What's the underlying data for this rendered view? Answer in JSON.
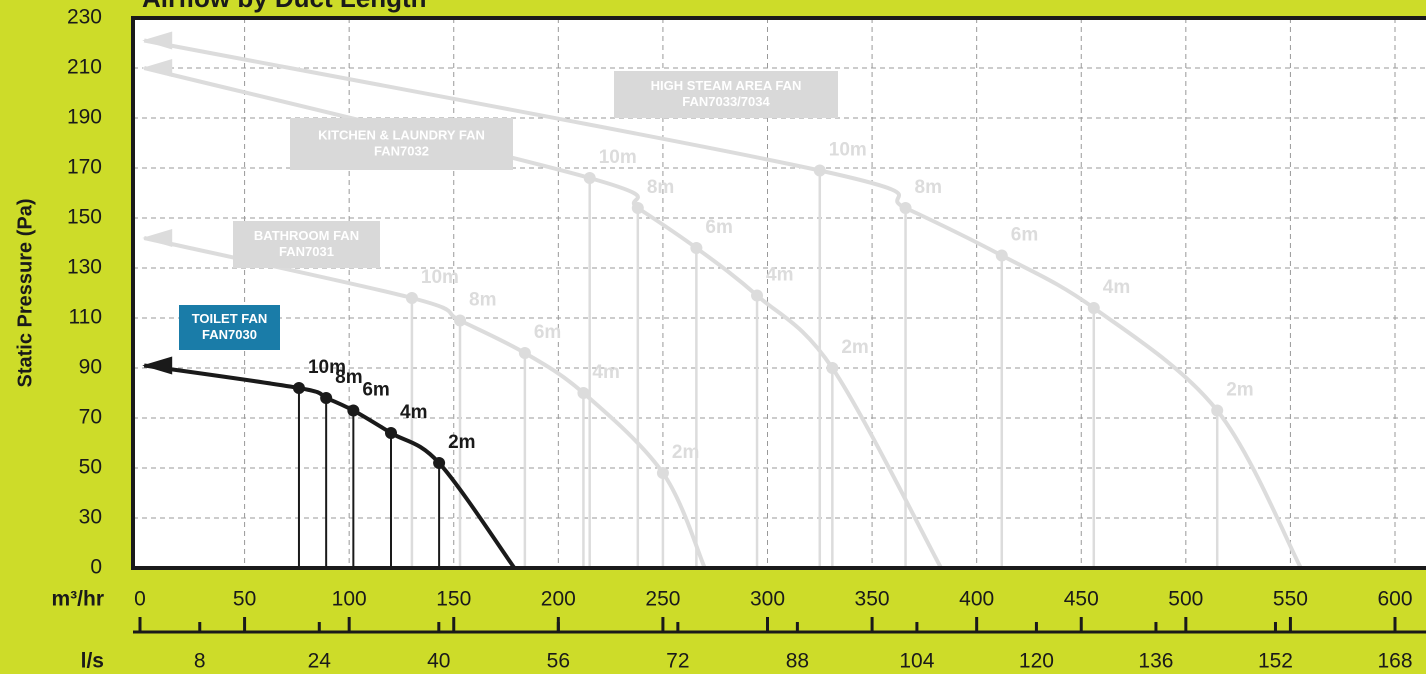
{
  "chart_data": {
    "type": "line",
    "title": "Airflow by Duct Length",
    "ylabel": "Static Pressure (Pa)",
    "xlabel": "m³/hr",
    "x2label": "l/s",
    "xlim": [
      0,
      600
    ],
    "xticks": [
      0,
      50,
      100,
      150,
      200,
      250,
      300,
      350,
      400,
      450,
      500,
      550,
      600
    ],
    "x2lim": [
      0,
      168
    ],
    "x2ticks": [
      8,
      24,
      40,
      56,
      72,
      88,
      104,
      120,
      136,
      152,
      168
    ],
    "ylim": [
      0,
      230
    ],
    "yticks": [
      0,
      30,
      50,
      70,
      90,
      110,
      130,
      150,
      170,
      190,
      210,
      230
    ],
    "grid": true,
    "series": [
      {
        "name": "HIGH STEAM AREA FAN",
        "model": "FAN7033/7034",
        "color": "#dcdcdc",
        "label_color": "#d9d9d9",
        "curve": {
          "x": [
            2,
            555
          ],
          "values": [
            221,
            0
          ]
        },
        "duct_points": {
          "labels": [
            "10m",
            "8m",
            "6m",
            "4m",
            "2m"
          ],
          "x": [
            325,
            366,
            412,
            456,
            515
          ],
          "values": [
            169,
            154,
            135,
            114,
            73
          ]
        }
      },
      {
        "name": "KITCHEN & LAUNDRY FAN",
        "model": "FAN7032",
        "color": "#dcdcdc",
        "label_color": "#d9d9d9",
        "curve": {
          "x": [
            2,
            383
          ],
          "values": [
            210,
            0
          ]
        },
        "duct_points": {
          "labels": [
            "10m",
            "8m",
            "6m",
            "4m",
            "2m"
          ],
          "x": [
            215,
            238,
            266,
            295,
            331
          ],
          "values": [
            166,
            154,
            138,
            119,
            90
          ]
        }
      },
      {
        "name": "BATHROOM FAN",
        "model": "FAN7031",
        "color": "#dcdcdc",
        "label_color": "#d9d9d9",
        "curve": {
          "x": [
            2,
            270
          ],
          "values": [
            142,
            0
          ]
        },
        "duct_points": {
          "labels": [
            "10m",
            "8m",
            "6m",
            "4m",
            "2m"
          ],
          "x": [
            130,
            153,
            184,
            212,
            250
          ],
          "values": [
            118,
            109,
            96,
            80,
            48
          ]
        }
      },
      {
        "name": "TOILET FAN",
        "model": "FAN7030",
        "color": "#1a1a1a",
        "label_color": "#1a7ca8",
        "curve": {
          "x": [
            2,
            179
          ],
          "values": [
            91,
            0
          ]
        },
        "duct_points": {
          "labels": [
            "10m",
            "8m",
            "6m",
            "4m",
            "2m"
          ],
          "x": [
            76,
            89,
            102,
            120,
            143
          ],
          "values": [
            82,
            78,
            73,
            64,
            52
          ]
        }
      }
    ]
  }
}
